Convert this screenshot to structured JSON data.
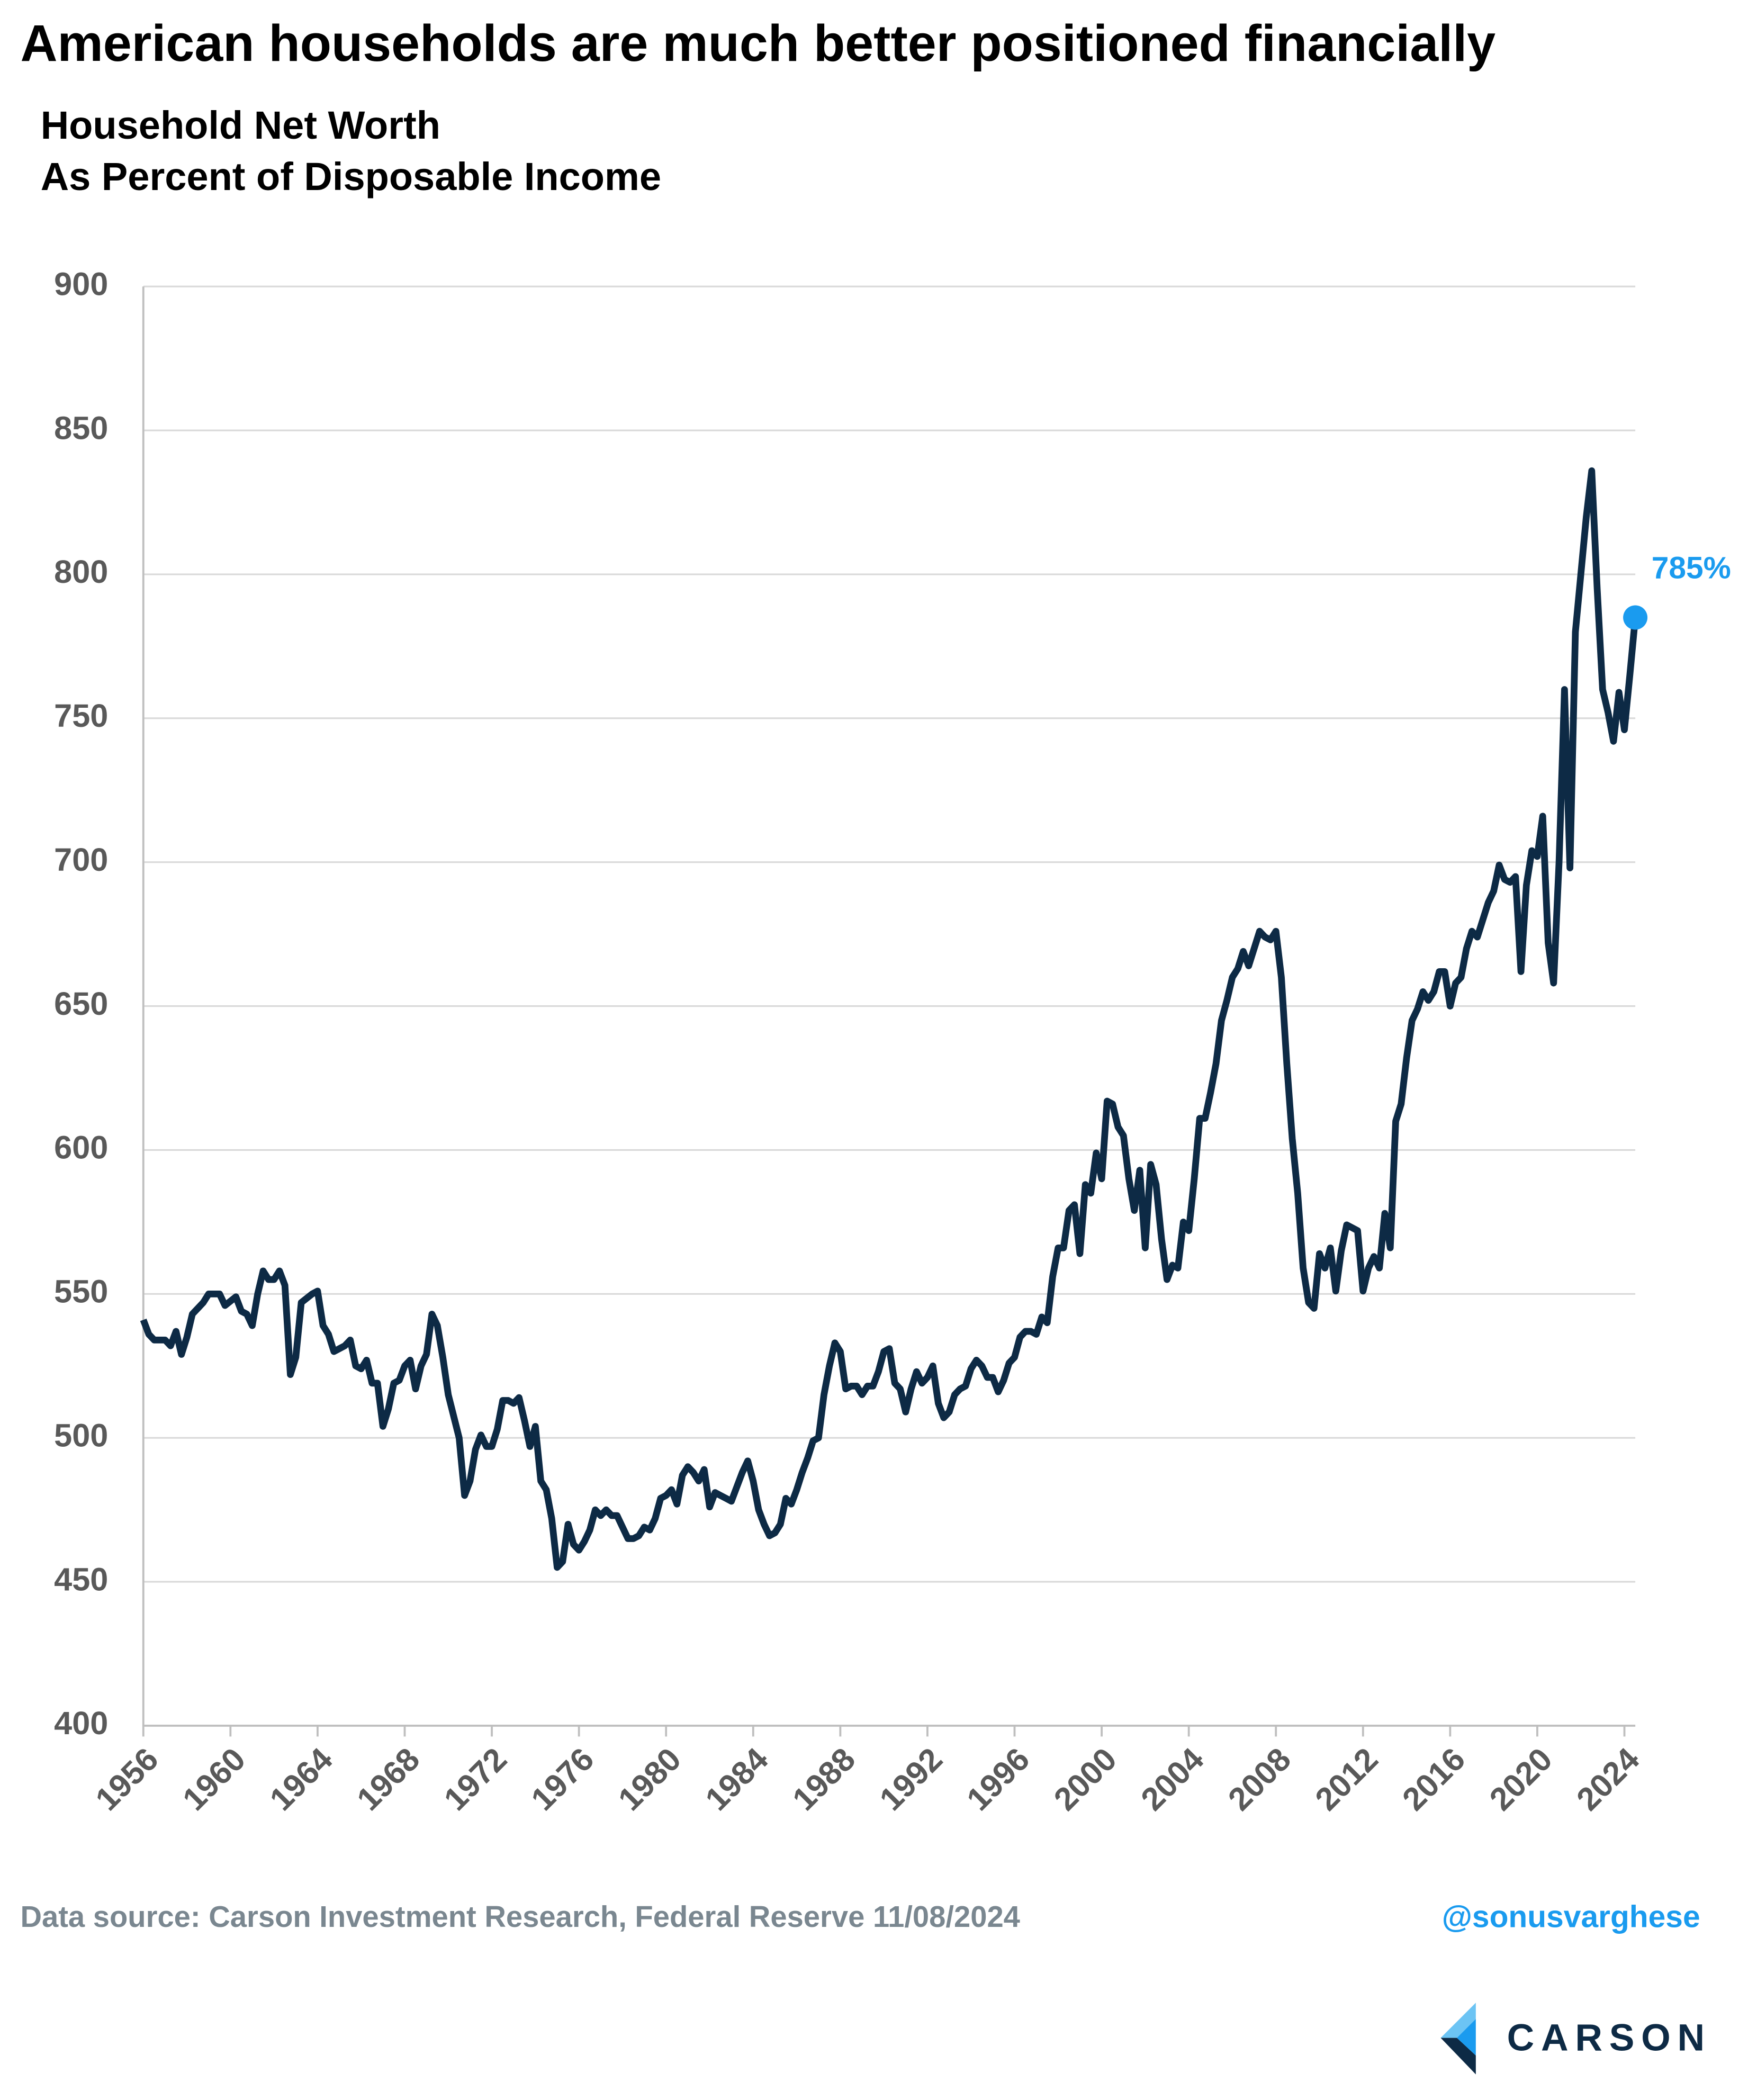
{
  "chart_data": {
    "type": "line",
    "title": "American households are much better positioned financially",
    "subtitle": [
      "Household Net Worth",
      "As Percent of Disposable Income"
    ],
    "source": "Data source: Carson Investment Research, Federal Reserve  11/08/2024",
    "handle": "@sonusvarghese",
    "logo": "CARSON",
    "xlim": [
      1956,
      2024.5
    ],
    "xticks": [
      1956,
      1960,
      1964,
      1968,
      1972,
      1976,
      1980,
      1984,
      1988,
      1992,
      1996,
      2000,
      2004,
      2008,
      2012,
      2016,
      2020,
      2024
    ],
    "ylim": [
      400,
      900
    ],
    "yticks": [
      400,
      450,
      500,
      550,
      600,
      650,
      700,
      750,
      800,
      850,
      900
    ],
    "grid": true,
    "x": [
      1956,
      1956.25,
      1956.5,
      1957,
      1957.25,
      1957.5,
      1957.75,
      1958,
      1958.25,
      1958.75,
      1959,
      1959.5,
      1959.75,
      1960.25,
      1960.5,
      1960.75,
      1961,
      1961.25,
      1961.5,
      1961.75,
      1962,
      1962.25,
      1962.5,
      1962.75,
      1963,
      1963.25,
      1963.75,
      1964,
      1964.25,
      1964.5,
      1964.75,
      1965.25,
      1965.5,
      1965.75,
      1966,
      1966.25,
      1966.5,
      1966.75,
      1967,
      1967.25,
      1967.5,
      1967.75,
      1968,
      1968.25,
      1968.5,
      1968.75,
      1969,
      1969.25,
      1969.5,
      1969.75,
      1970,
      1970.5,
      1970.75,
      1971,
      1971.25,
      1971.5,
      1971.75,
      1972,
      1972.25,
      1972.5,
      1972.75,
      1973,
      1973.25,
      1973.5,
      1973.75,
      1974,
      1974.25,
      1974.5,
      1974.75,
      1975,
      1975.25,
      1975.5,
      1975.75,
      1976,
      1976.25,
      1976.5,
      1976.75,
      1977,
      1977.25,
      1977.5,
      1977.75,
      1978,
      1978.25,
      1978.5,
      1978.75,
      1979,
      1979.25,
      1979.5,
      1979.75,
      1980,
      1980.25,
      1980.5,
      1980.75,
      1981,
      1981.25,
      1981.5,
      1981.75,
      1982,
      1982.25,
      1982.5,
      1982.75,
      1983,
      1983.25,
      1983.5,
      1983.75,
      1984,
      1984.25,
      1984.5,
      1984.75,
      1985,
      1985.25,
      1985.5,
      1985.75,
      1986,
      1986.25,
      1986.5,
      1986.75,
      1987,
      1987.25,
      1987.5,
      1987.75,
      1988,
      1988.25,
      1988.5,
      1988.75,
      1989,
      1989.25,
      1989.5,
      1989.75,
      1990,
      1990.25,
      1990.5,
      1990.75,
      1991,
      1991.25,
      1991.5,
      1991.75,
      1992,
      1992.25,
      1992.5,
      1992.75,
      1993,
      1993.25,
      1993.5,
      1993.75,
      1994,
      1994.25,
      1994.5,
      1994.75,
      1995,
      1995.25,
      1995.5,
      1995.75,
      1996,
      1996.25,
      1996.5,
      1996.75,
      1997,
      1997.25,
      1997.5,
      1997.75,
      1998,
      1998.25,
      1998.5,
      1998.75,
      1999,
      1999.25,
      1999.5,
      1999.75,
      2000,
      2000.25,
      2000.5,
      2000.75,
      2001,
      2001.25,
      2001.5,
      2001.75,
      2002,
      2002.25,
      2002.5,
      2002.75,
      2003,
      2003.25,
      2003.5,
      2003.75,
      2004,
      2004.25,
      2004.5,
      2004.75,
      2005,
      2005.25,
      2005.5,
      2005.75,
      2006,
      2006.25,
      2006.5,
      2006.75,
      2007,
      2007.25,
      2007.5,
      2007.75,
      2008,
      2008.25,
      2008.5,
      2008.75,
      2009,
      2009.25,
      2009.5,
      2009.75,
      2010,
      2010.25,
      2010.5,
      2010.75,
      2011,
      2011.25,
      2011.5,
      2011.75,
      2012,
      2012.25,
      2012.5,
      2012.75,
      2013,
      2013.25,
      2013.5,
      2013.75,
      2014,
      2014.25,
      2014.5,
      2014.75,
      2015,
      2015.25,
      2015.5,
      2015.75,
      2016,
      2016.25,
      2016.5,
      2016.75,
      2017,
      2017.25,
      2017.5,
      2017.75,
      2018,
      2018.25,
      2018.5,
      2018.75,
      2019,
      2019.25,
      2019.5,
      2019.75,
      2020,
      2020.25,
      2020.5,
      2020.75,
      2021,
      2021.25,
      2021.5,
      2021.75,
      2022,
      2022.25,
      2022.5,
      2022.75,
      2023,
      2023.25,
      2023.5,
      2023.75,
      2024,
      2024.25,
      2024.5
    ],
    "series": [
      {
        "name": "Household Net Worth",
        "color": "#0d2a45",
        "end_color": "#1a9bef",
        "end_label": "785%",
        "values": [
          541,
          536,
          534,
          534,
          532,
          537,
          529,
          535,
          543,
          547,
          550,
          550,
          546,
          549,
          544,
          543,
          539,
          550,
          558,
          555,
          555,
          558,
          553,
          522,
          528,
          547,
          550,
          551,
          539,
          536,
          530,
          532,
          534,
          525,
          524,
          527,
          519,
          519,
          504,
          510,
          519,
          520,
          525,
          527,
          517,
          525,
          529,
          543,
          539,
          528,
          515,
          500,
          480,
          485,
          496,
          501,
          497,
          497,
          503,
          513,
          513,
          512,
          514,
          506,
          497,
          504,
          485,
          482,
          472,
          455,
          457,
          470,
          463,
          461,
          464,
          468,
          475,
          473,
          475,
          473,
          473,
          469,
          465,
          465,
          466,
          469,
          468,
          472,
          479,
          480,
          482,
          477,
          487,
          490,
          488,
          485,
          489,
          476,
          481,
          480,
          479,
          478,
          483,
          488,
          492,
          485,
          475,
          470,
          466,
          467,
          470,
          479,
          477,
          482,
          488,
          493,
          499,
          500,
          515,
          525,
          533,
          530,
          517,
          518,
          518,
          515,
          518,
          518,
          523,
          530,
          531,
          519,
          517,
          509,
          517,
          523,
          519,
          521,
          525,
          512,
          507,
          509,
          515,
          517,
          518,
          524,
          527,
          525,
          521,
          521,
          516,
          520,
          526,
          528,
          535,
          537,
          537,
          536,
          542,
          540,
          556,
          566,
          566,
          579,
          581,
          564,
          588,
          585,
          599,
          590,
          617,
          616,
          608,
          605,
          590,
          579,
          593,
          566,
          595,
          588,
          569,
          555,
          560,
          559,
          575,
          572,
          590,
          611,
          611,
          620,
          630,
          645,
          652,
          660,
          663,
          669,
          664,
          670,
          676,
          674,
          673,
          676,
          660,
          630,
          604,
          585,
          559,
          547,
          545,
          564,
          559,
          566,
          551,
          565,
          574,
          573,
          572,
          551,
          559,
          563,
          559,
          578,
          566,
          610,
          616,
          632,
          645,
          649,
          655,
          652,
          655,
          662,
          662,
          650,
          658,
          660,
          670,
          676,
          674,
          680,
          686,
          690,
          699,
          694,
          693,
          695,
          662,
          692,
          704,
          702,
          716,
          672,
          658,
          700,
          760,
          698,
          780,
          800,
          820,
          836,
          795,
          760,
          752,
          742,
          759,
          746,
          765,
          785
        ]
      }
    ]
  }
}
